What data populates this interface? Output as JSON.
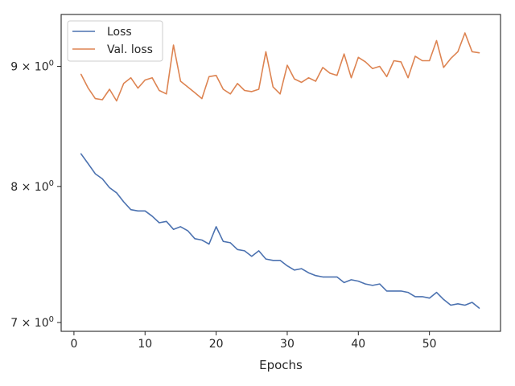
{
  "chart_data": {
    "type": "line",
    "xlabel": "Epochs",
    "ylabel": "",
    "xlim": [
      -1.8,
      60.0
    ],
    "ylim": [
      6.94,
      9.47
    ],
    "yscale": "log",
    "x_ticks": [
      0,
      10,
      20,
      30,
      40,
      50
    ],
    "x_tick_labels": [
      "0",
      "10",
      "20",
      "30",
      "40",
      "50"
    ],
    "y_ticks": [
      7,
      8,
      9
    ],
    "y_tick_labels": [
      {
        "base": "7 × 10",
        "exp": "0"
      },
      {
        "base": "8 × 10",
        "exp": "0"
      },
      {
        "base": "9 × 10",
        "exp": "0"
      }
    ],
    "grid": false,
    "legend_position": "top-left",
    "x": [
      1,
      2,
      3,
      4,
      5,
      6,
      7,
      8,
      9,
      10,
      11,
      12,
      13,
      14,
      15,
      16,
      17,
      18,
      19,
      20,
      21,
      22,
      23,
      24,
      25,
      26,
      27,
      28,
      29,
      30,
      31,
      32,
      33,
      34,
      35,
      36,
      37,
      38,
      39,
      40,
      41,
      42,
      43,
      44,
      45,
      46,
      47,
      48,
      49,
      50,
      51,
      52,
      53,
      54,
      55,
      56,
      57
    ],
    "series": [
      {
        "name": "Loss",
        "color": "#4c72b0",
        "values": [
          8.26,
          8.18,
          8.1,
          8.06,
          7.99,
          7.95,
          7.88,
          7.82,
          7.81,
          7.81,
          7.77,
          7.72,
          7.73,
          7.67,
          7.69,
          7.66,
          7.6,
          7.59,
          7.56,
          7.69,
          7.58,
          7.57,
          7.52,
          7.51,
          7.47,
          7.51,
          7.45,
          7.44,
          7.44,
          7.4,
          7.37,
          7.38,
          7.35,
          7.33,
          7.32,
          7.32,
          7.32,
          7.28,
          7.3,
          7.29,
          7.27,
          7.26,
          7.27,
          7.22,
          7.22,
          7.22,
          7.21,
          7.18,
          7.18,
          7.17,
          7.21,
          7.16,
          7.12,
          7.13,
          7.12,
          7.14,
          7.1
        ]
      },
      {
        "name": "Val. loss",
        "color": "#dd8452",
        "values": [
          8.93,
          8.81,
          8.72,
          8.71,
          8.8,
          8.7,
          8.85,
          8.9,
          8.81,
          8.88,
          8.9,
          8.79,
          8.76,
          9.19,
          8.87,
          8.82,
          8.77,
          8.72,
          8.91,
          8.92,
          8.8,
          8.76,
          8.85,
          8.79,
          8.78,
          8.8,
          9.13,
          8.82,
          8.76,
          9.01,
          8.89,
          8.86,
          8.9,
          8.87,
          8.99,
          8.94,
          8.92,
          9.11,
          8.9,
          9.08,
          9.04,
          8.98,
          9.0,
          8.91,
          9.05,
          9.04,
          8.9,
          9.09,
          9.05,
          9.05,
          9.23,
          8.99,
          9.07,
          9.13,
          9.3,
          9.13,
          9.12
        ]
      }
    ]
  }
}
